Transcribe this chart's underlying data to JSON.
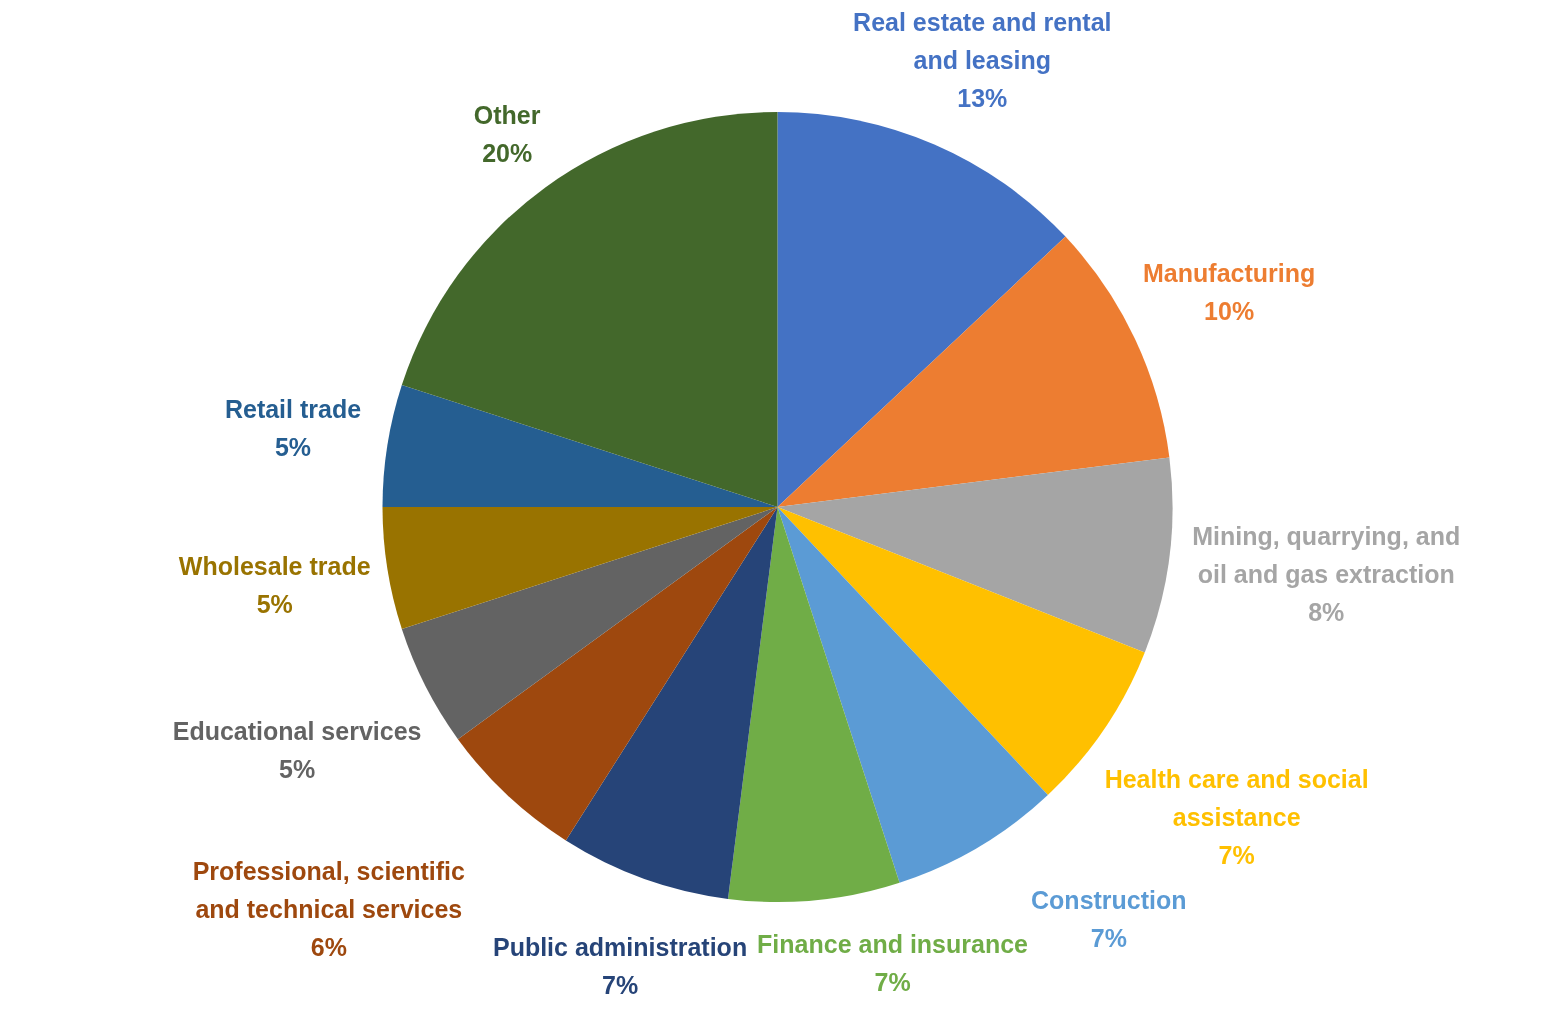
{
  "chart_data": {
    "type": "pie",
    "categories": [
      "Real estate and rental and leasing",
      "Manufacturing",
      "Mining, quarrying, and oil and gas extraction",
      "Health care and social assistance",
      "Construction",
      "Finance and insurance",
      "Public administration",
      "Professional, scientific and technical services",
      "Educational services",
      "Wholesale trade",
      "Retail trade",
      "Other"
    ],
    "values": [
      13,
      10,
      8,
      7,
      7,
      7,
      7,
      6,
      5,
      5,
      5,
      20
    ],
    "value_labels": [
      "13%",
      "10%",
      "8%",
      "7%",
      "7%",
      "7%",
      "7%",
      "6%",
      "5%",
      "5%",
      "5%",
      "20%"
    ],
    "colors": [
      "#4472c4",
      "#ed7d31",
      "#a5a5a5",
      "#ffc000",
      "#5b9bd5",
      "#70ad47",
      "#264478",
      "#9e480e",
      "#636363",
      "#997300",
      "#255e91",
      "#43682b"
    ]
  }
}
